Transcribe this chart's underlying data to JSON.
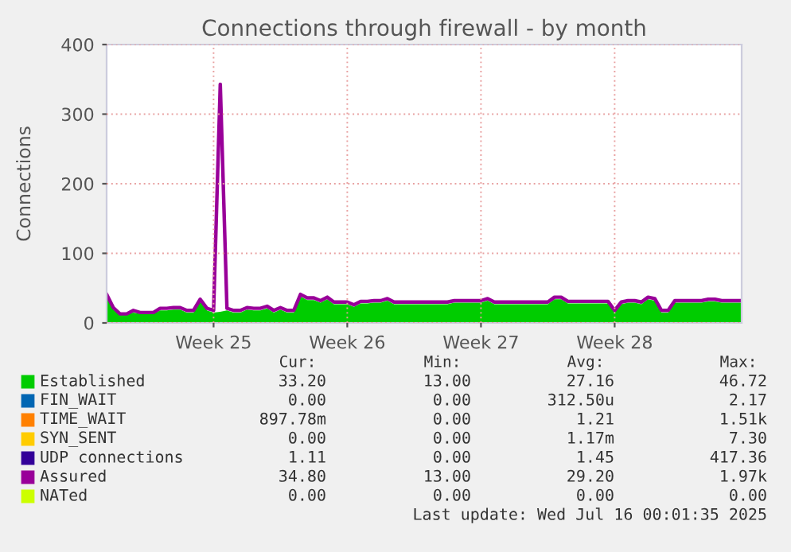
{
  "chart_data": {
    "type": "area",
    "title": "Connections through firewall - by month",
    "ylabel": "Connections",
    "categories": [
      null,
      null,
      null,
      null,
      null,
      null,
      null,
      null,
      null,
      null,
      null,
      null,
      null,
      null,
      null,
      null,
      "Week 25",
      null,
      null,
      null,
      null,
      null,
      null,
      null,
      null,
      null,
      null,
      null,
      null,
      null,
      null,
      null,
      null,
      null,
      null,
      null,
      "Week 26",
      null,
      null,
      null,
      null,
      null,
      null,
      null,
      null,
      null,
      null,
      null,
      null,
      null,
      null,
      null,
      null,
      null,
      null,
      null,
      "Week 27",
      null,
      null,
      null,
      null,
      null,
      null,
      null,
      null,
      null,
      null,
      null,
      null,
      null,
      null,
      null,
      null,
      null,
      null,
      null,
      "Week 28",
      null,
      null,
      null,
      null,
      null,
      null,
      null,
      null,
      null,
      null,
      null,
      null,
      null,
      null,
      null,
      null,
      null,
      null,
      null
    ],
    "series": [
      {
        "name": "Established",
        "color": "#00cc00",
        "values": [
          38,
          19,
          13,
          13,
          15,
          13,
          13,
          13,
          18,
          18,
          19,
          19,
          15,
          15,
          31,
          18,
          15,
          16,
          18,
          15,
          15,
          19,
          18,
          18,
          21,
          15,
          19,
          15,
          15,
          38,
          33,
          33,
          29,
          34,
          27,
          27,
          27,
          23,
          28,
          28,
          29,
          29,
          32,
          27,
          27,
          27,
          27,
          27,
          27,
          27,
          27,
          27,
          29,
          29,
          29,
          29,
          29,
          32,
          27,
          27,
          27,
          27,
          27,
          27,
          27,
          27,
          27,
          34,
          34,
          28,
          28,
          28,
          28,
          28,
          28,
          28,
          15,
          27,
          29,
          29,
          27,
          34,
          32,
          15,
          15,
          29,
          29,
          29,
          29,
          29,
          31,
          31,
          29,
          29,
          29,
          29
        ]
      },
      {
        "name": "FIN_WAIT",
        "color": "#0066b3",
        "type": "line",
        "values": [
          null,
          null,
          null,
          null,
          null,
          null,
          null,
          null,
          null,
          null,
          null,
          null,
          null,
          null,
          null,
          null,
          null,
          null,
          null,
          null,
          null,
          null,
          null,
          null,
          null,
          null,
          null,
          null,
          null,
          null,
          null,
          null,
          null,
          null,
          null,
          null,
          null,
          null,
          null,
          null,
          null,
          null,
          null,
          null,
          null,
          null,
          null,
          null,
          null,
          null,
          null,
          null,
          null,
          null,
          null,
          null,
          null,
          null,
          null,
          null,
          null,
          null,
          null,
          null,
          null,
          null,
          null,
          null,
          null,
          null,
          null,
          null,
          null,
          null,
          null,
          null,
          null,
          null,
          null,
          null,
          null,
          null,
          null,
          null,
          null,
          null,
          null,
          null,
          null,
          null,
          null,
          null,
          null,
          null,
          null,
          null
        ]
      },
      {
        "name": "TIME_WAIT",
        "color": "#ff8000",
        "type": "line",
        "values": [
          null,
          null,
          null,
          null,
          null,
          null,
          null,
          null,
          null,
          null,
          null,
          null,
          null,
          null,
          null,
          null,
          null,
          null,
          null,
          null,
          null,
          null,
          null,
          null,
          null,
          null,
          null,
          null,
          null,
          null,
          null,
          null,
          null,
          null,
          null,
          null,
          null,
          null,
          null,
          null,
          null,
          null,
          null,
          null,
          null,
          null,
          null,
          null,
          null,
          null,
          null,
          null,
          null,
          null,
          null,
          null,
          null,
          null,
          null,
          null,
          null,
          null,
          null,
          null,
          null,
          null,
          null,
          null,
          null,
          null,
          null,
          null,
          null,
          null,
          null,
          null,
          null,
          null,
          null,
          null,
          null,
          null,
          null,
          null,
          null,
          null,
          null,
          null,
          null,
          null,
          null,
          null,
          null,
          null,
          null,
          null
        ]
      },
      {
        "name": "SYN_SENT",
        "color": "#ffcc00",
        "type": "line",
        "values": [
          null,
          null,
          null,
          null,
          null,
          null,
          null,
          null,
          null,
          null,
          null,
          null,
          null,
          null,
          null,
          null,
          null,
          null,
          null,
          null,
          null,
          null,
          null,
          null,
          null,
          null,
          null,
          null,
          null,
          null,
          null,
          null,
          null,
          null,
          null,
          null,
          null,
          null,
          null,
          null,
          null,
          null,
          null,
          null,
          null,
          null,
          null,
          null,
          null,
          null,
          null,
          null,
          null,
          null,
          null,
          null,
          null,
          null,
          null,
          null,
          null,
          null,
          null,
          null,
          null,
          null,
          null,
          null,
          null,
          null,
          null,
          null,
          null,
          null,
          null,
          null,
          null,
          null,
          null,
          null,
          null,
          null,
          null,
          null,
          null,
          null,
          null,
          null,
          null,
          null,
          null,
          null,
          null,
          null,
          null,
          null
        ]
      },
      {
        "name": "UDP connections",
        "color": "#330099",
        "type": "line",
        "values": [
          null,
          null,
          null,
          null,
          null,
          null,
          null,
          null,
          null,
          null,
          null,
          null,
          null,
          null,
          null,
          null,
          null,
          null,
          null,
          null,
          null,
          null,
          null,
          null,
          null,
          null,
          null,
          null,
          null,
          null,
          null,
          null,
          null,
          null,
          null,
          null,
          null,
          null,
          null,
          null,
          null,
          null,
          null,
          null,
          null,
          null,
          null,
          null,
          null,
          null,
          null,
          null,
          null,
          null,
          null,
          null,
          null,
          null,
          null,
          null,
          null,
          null,
          null,
          null,
          null,
          null,
          null,
          null,
          null,
          null,
          null,
          null,
          null,
          null,
          null,
          null,
          null,
          null,
          null,
          null,
          null,
          null,
          null,
          null,
          null,
          null,
          null,
          null,
          null,
          null,
          null,
          null,
          null,
          null,
          null,
          null
        ]
      },
      {
        "name": "Assured",
        "color": "#990099",
        "type": "line",
        "values": [
          41,
          22,
          13,
          13,
          18,
          15,
          15,
          15,
          21,
          21,
          22,
          22,
          18,
          18,
          34,
          21,
          18,
          343,
          21,
          18,
          18,
          22,
          21,
          21,
          24,
          18,
          22,
          18,
          18,
          41,
          36,
          36,
          32,
          37,
          30,
          30,
          30,
          26,
          31,
          31,
          32,
          32,
          35,
          30,
          30,
          30,
          30,
          30,
          30,
          30,
          30,
          30,
          32,
          32,
          32,
          32,
          32,
          35,
          30,
          30,
          30,
          30,
          30,
          30,
          30,
          30,
          30,
          37,
          37,
          31,
          31,
          31,
          31,
          31,
          31,
          31,
          18,
          30,
          32,
          32,
          30,
          37,
          35,
          18,
          18,
          32,
          32,
          32,
          32,
          32,
          34,
          34,
          32,
          32,
          32,
          32
        ]
      },
      {
        "name": "NATed",
        "color": "#ccff00",
        "type": "line",
        "values": [
          null,
          null,
          null,
          null,
          null,
          null,
          null,
          null,
          null,
          null,
          null,
          null,
          null,
          null,
          null,
          null,
          null,
          null,
          null,
          null,
          null,
          null,
          null,
          null,
          null,
          null,
          null,
          null,
          null,
          null,
          null,
          null,
          null,
          null,
          null,
          null,
          null,
          null,
          null,
          null,
          null,
          null,
          null,
          null,
          null,
          null,
          null,
          null,
          null,
          null,
          null,
          null,
          null,
          null,
          null,
          null,
          null,
          null,
          null,
          null,
          null,
          null,
          null,
          null,
          null,
          null,
          null,
          null,
          null,
          null,
          null,
          null,
          null,
          null,
          null,
          null,
          null,
          null,
          null,
          null,
          null,
          null,
          null,
          null,
          null,
          null,
          null,
          null,
          null,
          null,
          null,
          null,
          null,
          null,
          null,
          null
        ]
      }
    ],
    "ylim": [
      0,
      400
    ],
    "yticks": [
      0,
      100,
      200,
      300,
      400
    ],
    "grid": true,
    "legend": "bottom",
    "annotations": [
      "Cur: Min: Avg: Max:",
      "33.20 13.00 27.16 46.72",
      "0.00 0.00 312.50u 2.17",
      "897.78m 0.00 1.21 1.51k",
      "0.00 0.00 1.17m 7.30",
      "1.11 0.00 1.45 417.36",
      "34.80 13.00 29.20 1.97k",
      "0.00 0.00 0.00 0.00",
      "Last update: Wed Jul 16 00:01:35 2025"
    ]
  }
}
